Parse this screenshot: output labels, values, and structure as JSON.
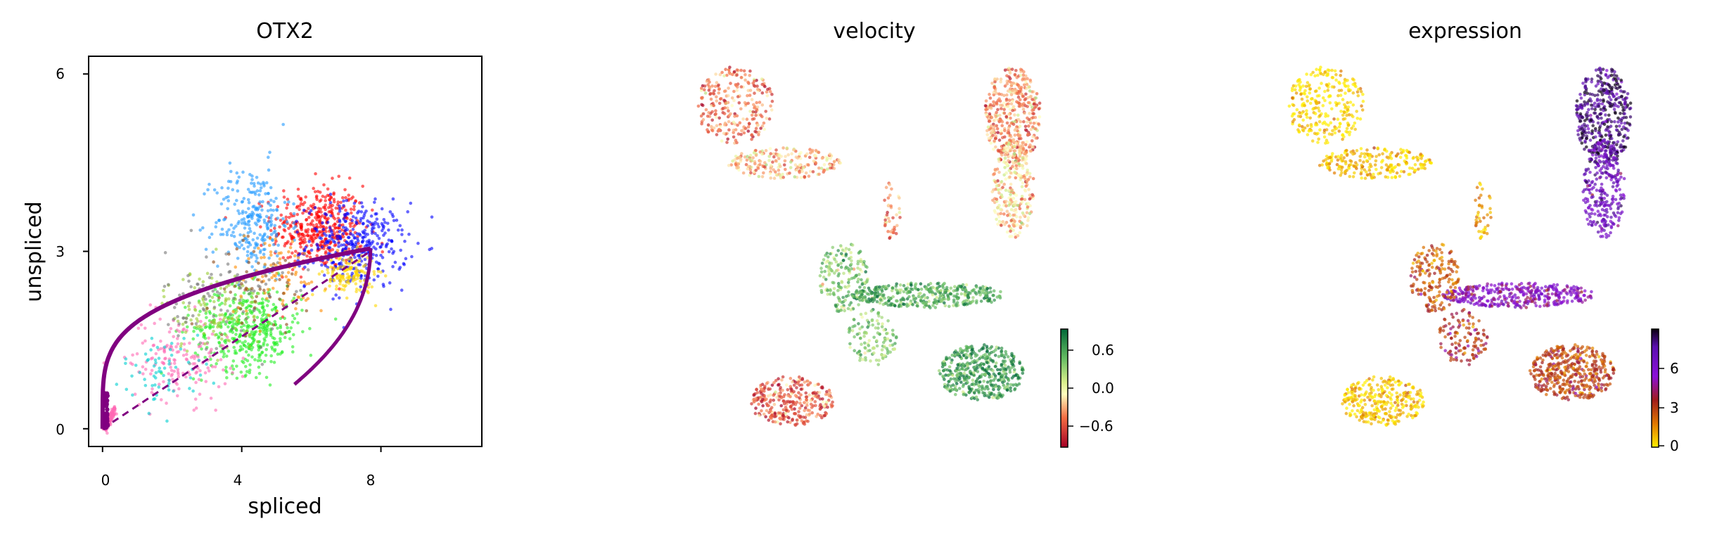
{
  "chart_data": [
    {
      "type": "scatter",
      "title": "OTX2",
      "xlabel": "spliced",
      "ylabel": "unspliced",
      "xlim": [
        -0.4,
        10.9
      ],
      "ylim": [
        -0.3,
        6.3
      ],
      "xticks": [
        "0",
        "4",
        "8"
      ],
      "yticks": [
        "0",
        "3",
        "6"
      ],
      "grid": false,
      "legend": "none",
      "colors": [
        "#ff0000",
        "#0000ff",
        "#2299ff",
        "#22ee22",
        "#ffd700",
        "#ff69b4",
        "#9acd32",
        "#ff8c00",
        "#777777",
        "#00ced1",
        "#8b4513"
      ],
      "point_clusters": [
        {
          "color": "#ff0000",
          "center": [
            6.2,
            3.4
          ],
          "spread": [
            1.1,
            0.6
          ],
          "n": 420
        },
        {
          "color": "#0000ff",
          "center": [
            7.3,
            3.1
          ],
          "spread": [
            1.2,
            0.6
          ],
          "n": 360
        },
        {
          "color": "#2299ff",
          "center": [
            4.3,
            3.5
          ],
          "spread": [
            0.9,
            0.8
          ],
          "n": 260
        },
        {
          "color": "#22ee22",
          "center": [
            4.2,
            1.7
          ],
          "spread": [
            1.3,
            0.6
          ],
          "n": 420
        },
        {
          "color": "#ffd700",
          "center": [
            7.1,
            2.6
          ],
          "spread": [
            0.6,
            0.3
          ],
          "n": 130
        },
        {
          "color": "#ff69b4",
          "center": [
            2.2,
            1.2
          ],
          "spread": [
            1.2,
            0.6
          ],
          "n": 160
        },
        {
          "color": "#9acd32",
          "center": [
            3.2,
            2.0
          ],
          "spread": [
            1.2,
            0.6
          ],
          "n": 120
        },
        {
          "color": "#777777",
          "center": [
            3.5,
            2.2
          ],
          "spread": [
            1.4,
            0.7
          ],
          "n": 90
        },
        {
          "color": "#00ced1",
          "center": [
            1.8,
            1.0
          ],
          "spread": [
            1.0,
            0.5
          ],
          "n": 60
        },
        {
          "color": "#ff8c00",
          "center": [
            5.0,
            2.6
          ],
          "spread": [
            1.2,
            0.6
          ],
          "n": 80
        },
        {
          "color": "#8b4513",
          "center": [
            4.5,
            2.4
          ],
          "spread": [
            1.2,
            0.6
          ],
          "n": 60
        }
      ],
      "fit_curve": {
        "color": "#800080",
        "description": "induction and repression trajectory",
        "steady_state": [
          7.7,
          3.05
        ]
      },
      "steady_state_line": {
        "color": "#800080",
        "style": "dashed",
        "slope": 0.39
      }
    },
    {
      "type": "scatter",
      "title": "velocity",
      "embedding": "umap",
      "colormap": "RdYlGn",
      "colorbar_ticks": [
        "0.6",
        "0.0",
        "−0.6"
      ],
      "colorbar_range": [
        -0.8,
        0.8
      ]
    },
    {
      "type": "scatter",
      "title": "expression",
      "embedding": "umap",
      "colormap": "gnuplot_r",
      "colorbar_ticks": [
        "6",
        "3",
        "0"
      ],
      "colorbar_range": [
        0,
        8.5
      ]
    }
  ]
}
